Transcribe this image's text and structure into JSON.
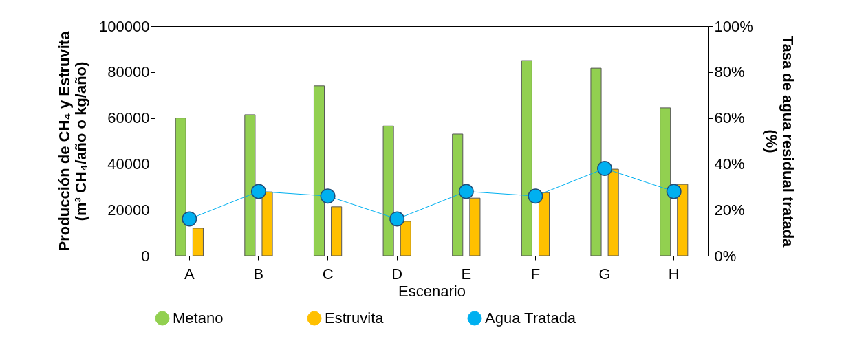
{
  "chart_data": {
    "type": "bar",
    "xlabel": "Escenario",
    "ylabel": "Producción de CH₄ y Estruvita\n(m³ CH₄/año o kg/año)",
    "y2label": "Tasa de agua residual tratada\n(%)",
    "categories": [
      "A",
      "B",
      "C",
      "D",
      "E",
      "F",
      "G",
      "H"
    ],
    "series": [
      {
        "name": "Metano",
        "color": "#92d050",
        "values": [
          60000,
          61400,
          74000,
          56500,
          53000,
          85000,
          81700,
          64400
        ]
      },
      {
        "name": "Estruvita",
        "color": "#ffc000",
        "values": [
          12000,
          27800,
          21300,
          15000,
          25100,
          27500,
          37700,
          31100
        ]
      },
      {
        "name": "Agua Tratada",
        "type": "line",
        "axis": "y2",
        "color": "#00b0f0",
        "marker": "circle",
        "values": [
          16,
          28,
          26,
          16,
          28,
          26,
          38,
          28
        ]
      }
    ],
    "ylim": [
      0,
      100000
    ],
    "yticks": [
      0,
      20000,
      40000,
      60000,
      80000,
      100000
    ],
    "y2lim": [
      0,
      100
    ],
    "y2ticks": [
      {
        "value": 0,
        "label": "0%"
      },
      {
        "value": 20,
        "label": "20%"
      },
      {
        "value": 40,
        "label": "40%"
      },
      {
        "value": 60,
        "label": "60%"
      },
      {
        "value": 80,
        "label": "80%"
      },
      {
        "value": 100,
        "label": "100%"
      }
    ],
    "legend": "bottom"
  }
}
